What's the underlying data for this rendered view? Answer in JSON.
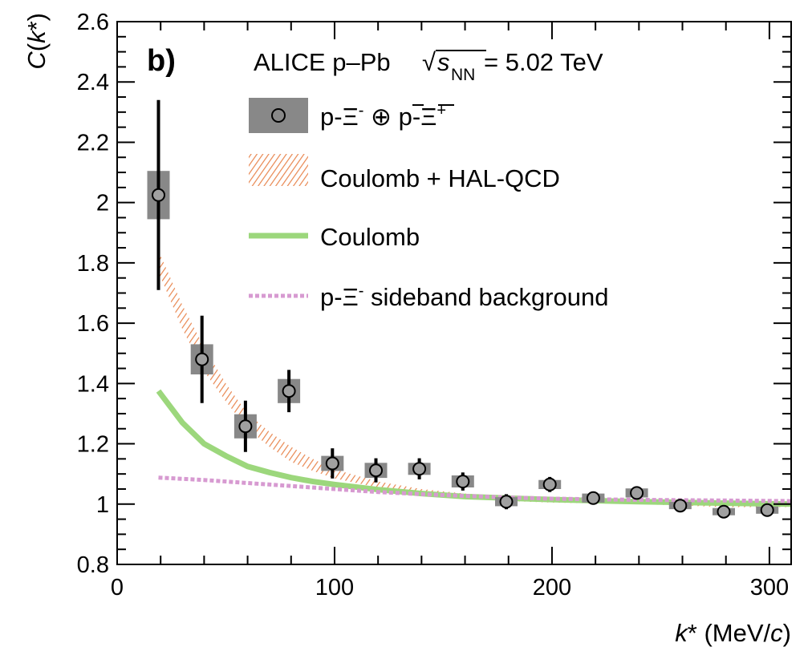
{
  "chart_data": {
    "type": "scatter",
    "panel_label": "b)",
    "header": {
      "prefix": "ALICE p–Pb ",
      "sqrt_symbol": "√",
      "s": "s",
      "s_sub": "NN",
      "suffix": " = 5.02 TeV"
    },
    "xlabel": {
      "k": "k",
      "star": "*",
      "unit_open": " (MeV/",
      "unit_c": "c",
      "unit_close": ")"
    },
    "ylabel": {
      "C": "C",
      "open": "(",
      "k": "k",
      "star": "*",
      "close": ")"
    },
    "xlim": [
      0,
      310
    ],
    "ylim": [
      0.8,
      2.6
    ],
    "x_ticks": [
      "0",
      "100",
      "200",
      "300"
    ],
    "x_tick_values": [
      0,
      100,
      200,
      300
    ],
    "y_ticks": [
      "0.8",
      "1",
      "1.2",
      "1.4",
      "1.6",
      "1.8",
      "2",
      "2.2",
      "2.4",
      "2.6"
    ],
    "y_tick_values": [
      0.8,
      1.0,
      1.2,
      1.4,
      1.6,
      1.8,
      2.0,
      2.2,
      2.4,
      2.6
    ],
    "legend": {
      "data": {
        "p": "p-",
        "xi": "Ξ",
        "minus": "-",
        "oplus": " ⊕ ",
        "pbar": "p",
        "dash": "-",
        "xibar": "Ξ",
        "plus": "+"
      },
      "hal": "Coulomb + HAL-QCD",
      "coulomb": "Coulomb",
      "sideband": {
        "p": "p-",
        "xi": "Ξ",
        "minus": "-",
        "rest": " sideband background"
      }
    },
    "colors": {
      "data_marker": "#000000",
      "data_syst_box": "#888888",
      "hal_band": "#e8864f",
      "coulomb_line": "#9cd77c",
      "sideband_line": "#d79ad1"
    },
    "series": [
      {
        "name": "p-Ξ- ⊕ p̄-Ξ̄+",
        "kind": "data",
        "points": [
          {
            "x": 19,
            "y": 2.025,
            "stat": 0.315,
            "syst": 0.08
          },
          {
            "x": 39,
            "y": 1.48,
            "stat": 0.145,
            "syst": 0.05
          },
          {
            "x": 59,
            "y": 1.258,
            "stat": 0.085,
            "syst": 0.04
          },
          {
            "x": 79,
            "y": 1.375,
            "stat": 0.07,
            "syst": 0.04
          },
          {
            "x": 99,
            "y": 1.135,
            "stat": 0.05,
            "syst": 0.025
          },
          {
            "x": 119,
            "y": 1.112,
            "stat": 0.04,
            "syst": 0.025
          },
          {
            "x": 139,
            "y": 1.117,
            "stat": 0.035,
            "syst": 0.02
          },
          {
            "x": 159,
            "y": 1.075,
            "stat": 0.03,
            "syst": 0.02
          },
          {
            "x": 179,
            "y": 1.008,
            "stat": 0.025,
            "syst": 0.015
          },
          {
            "x": 199,
            "y": 1.065,
            "stat": 0.025,
            "syst": 0.015
          },
          {
            "x": 219,
            "y": 1.02,
            "stat": 0.02,
            "syst": 0.015
          },
          {
            "x": 239,
            "y": 1.037,
            "stat": 0.02,
            "syst": 0.015
          },
          {
            "x": 259,
            "y": 0.995,
            "stat": 0.02,
            "syst": 0.012
          },
          {
            "x": 279,
            "y": 0.975,
            "stat": 0.02,
            "syst": 0.012
          },
          {
            "x": 299,
            "y": 0.98,
            "stat": 0.02,
            "syst": 0.012
          }
        ]
      },
      {
        "name": "Coulomb + HAL-QCD",
        "kind": "band",
        "x": [
          19,
          30,
          40,
          50,
          60,
          70,
          80,
          90,
          100,
          120,
          140,
          160,
          180,
          200,
          240,
          280,
          310
        ],
        "low": [
          1.77,
          1.58,
          1.44,
          1.34,
          1.25,
          1.19,
          1.14,
          1.11,
          1.085,
          1.055,
          1.035,
          1.02,
          1.01,
          1.005,
          1.0,
          0.99,
          0.99
        ],
        "high": [
          1.84,
          1.66,
          1.52,
          1.4,
          1.3,
          1.24,
          1.19,
          1.15,
          1.115,
          1.075,
          1.05,
          1.035,
          1.025,
          1.02,
          1.015,
          1.01,
          1.005
        ]
      },
      {
        "name": "Coulomb",
        "kind": "line",
        "x": [
          19,
          30,
          40,
          50,
          60,
          70,
          80,
          90,
          100,
          120,
          140,
          160,
          180,
          200,
          240,
          280,
          310
        ],
        "y": [
          1.375,
          1.27,
          1.2,
          1.16,
          1.125,
          1.105,
          1.088,
          1.075,
          1.065,
          1.048,
          1.035,
          1.025,
          1.02,
          1.015,
          1.008,
          1.003,
          1.0
        ]
      },
      {
        "name": "p-Ξ- sideband background",
        "kind": "dashed",
        "x": [
          19,
          40,
          60,
          80,
          100,
          120,
          140,
          160,
          180,
          200,
          240,
          280,
          310
        ],
        "y": [
          1.088,
          1.08,
          1.07,
          1.06,
          1.05,
          1.04,
          1.033,
          1.027,
          1.022,
          1.018,
          1.014,
          1.012,
          1.01
        ]
      }
    ]
  }
}
